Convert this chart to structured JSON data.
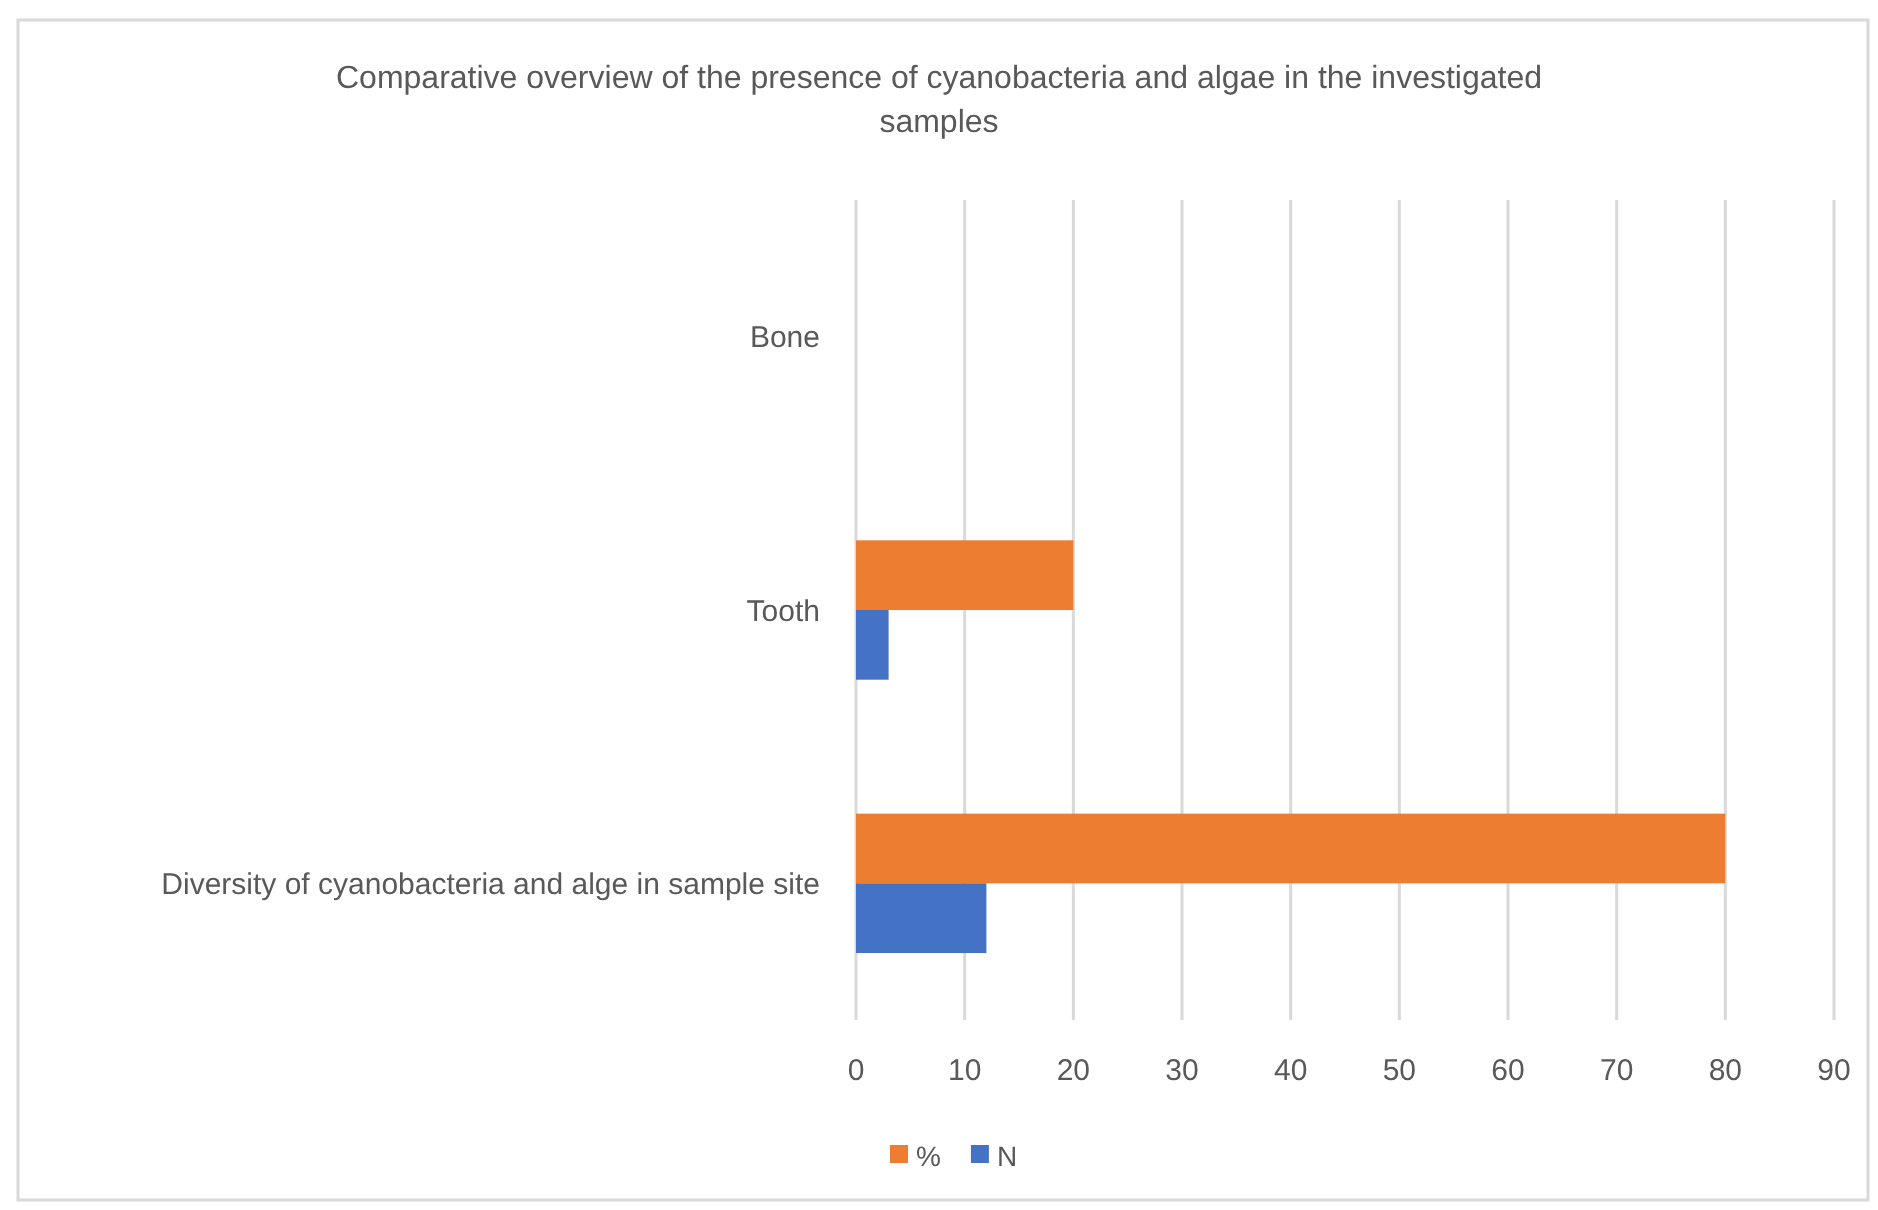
{
  "chart_data": {
    "type": "bar",
    "orientation": "horizontal",
    "title": "Comparative overview of the presence of cyanobacteria and algae in the investigated samples",
    "categories": [
      "Bone",
      "Tooth",
      "Diversity of cyanobacteria and alge in sample site"
    ],
    "series": [
      {
        "name": "%",
        "color": "#ed7d31",
        "values": [
          0,
          20,
          80
        ]
      },
      {
        "name": "N",
        "color": "#4472c4",
        "values": [
          0,
          3,
          12
        ]
      }
    ],
    "xlim": [
      0,
      90
    ],
    "xticks": [
      0,
      10,
      20,
      30,
      40,
      50,
      60,
      70,
      80,
      90
    ],
    "grid": "x",
    "legend": "bottom"
  }
}
